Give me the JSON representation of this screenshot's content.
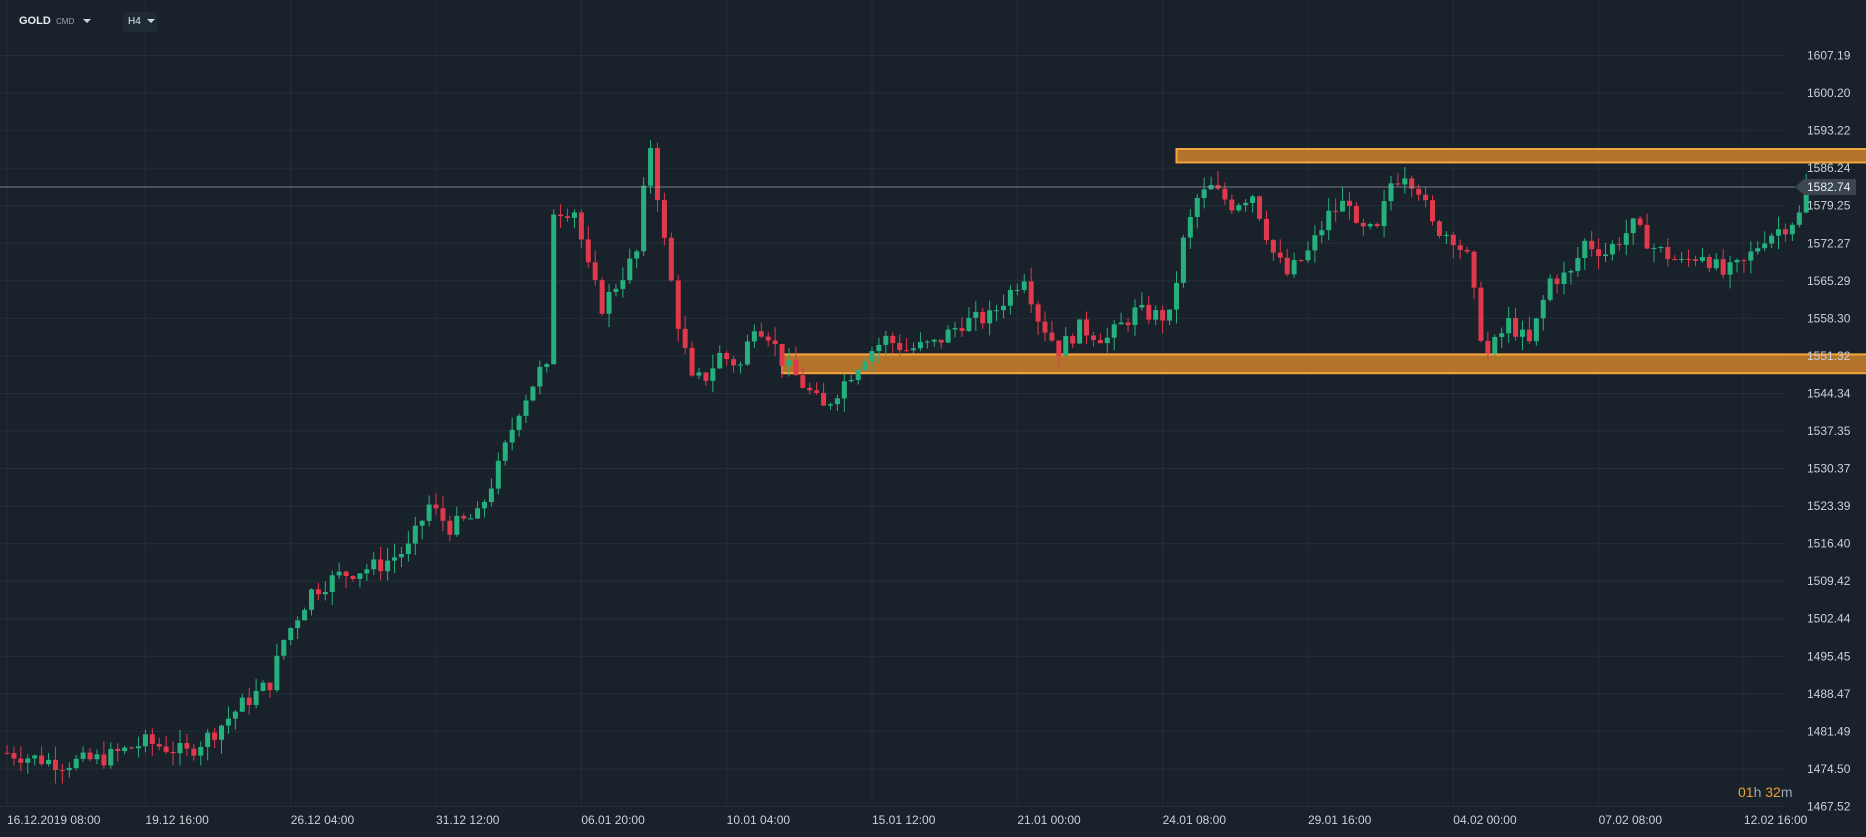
{
  "toolbar": {
    "symbol": "GOLD",
    "instrument_type": "CMD",
    "timeframe": "H4"
  },
  "countdown": {
    "hours": "01",
    "hours_unit": "h",
    "minutes": "32",
    "minutes_unit": "m"
  },
  "colors": {
    "background": "#19222a",
    "grid": "#232e38",
    "bullish": "#26b07e",
    "bearish": "#e0394b",
    "zone_fill": "#e08a2a",
    "zone_border": "#f5a640",
    "price_line": "#9aa5b1",
    "axis_text": "#c9d1d9"
  },
  "chart_data": {
    "type": "candlestick",
    "price_axis": {
      "labels": [
        "1607.19",
        "1600.20",
        "1593.22",
        "1586.24",
        "1579.25",
        "1572.27",
        "1565.29",
        "1558.30",
        "1551.32",
        "1544.34",
        "1537.35",
        "1530.37",
        "1523.39",
        "1516.40",
        "1509.42",
        "1502.44",
        "1495.45",
        "1488.47",
        "1481.49",
        "1474.50",
        "1467.52"
      ],
      "ylim": [
        1465.4,
        1616.6
      ]
    },
    "time_axis": {
      "labels": [
        "16.12.2019  08:00",
        "19.12  16:00",
        "26.12  04:00",
        "31.12  12:00",
        "06.01  20:00",
        "10.01  04:00",
        "15.01  12:00",
        "21.01  00:00",
        "24.01  08:00",
        "29.01  16:00",
        "04.02  00:00",
        "07.02  08:00",
        "12.02  16:00"
      ],
      "label_bar_index": [
        0,
        20,
        41,
        62,
        83,
        104,
        125,
        146,
        167,
        188,
        209,
        230,
        251
      ]
    },
    "current_price": {
      "label": "1582.74",
      "value": 1582.74
    },
    "zones": [
      {
        "name": "resistance",
        "from_bar": 169,
        "to_bar": 270,
        "low": 1587.3,
        "high": 1589.8
      },
      {
        "name": "support",
        "from_bar": 112,
        "to_bar": 272,
        "low": 1548.1,
        "high": 1551.6
      }
    ],
    "waypoints": [
      [
        0,
        1477.5
      ],
      [
        8,
        1475.5
      ],
      [
        14,
        1476.5
      ],
      [
        20,
        1479.5
      ],
      [
        26,
        1477.5
      ],
      [
        30,
        1481.5
      ],
      [
        34,
        1486.5
      ],
      [
        38,
        1490.5
      ],
      [
        40,
        1498.5
      ],
      [
        44,
        1507.5
      ],
      [
        48,
        1510.5
      ],
      [
        54,
        1512.5
      ],
      [
        58,
        1515.5
      ],
      [
        61,
        1523.5
      ],
      [
        64,
        1519.5
      ],
      [
        68,
        1521.5
      ],
      [
        71,
        1530.5
      ],
      [
        74,
        1541.5
      ],
      [
        77,
        1548.5
      ],
      [
        78,
        1548.5
      ],
      [
        79,
        1578.5
      ],
      [
        82,
        1578.5
      ],
      [
        84,
        1567.5
      ],
      [
        86,
        1560.5
      ],
      [
        88,
        1564.5
      ],
      [
        91,
        1570.5
      ],
      [
        92,
        1581.5
      ],
      [
        93,
        1590.5
      ],
      [
        95,
        1572.5
      ],
      [
        97,
        1557.5
      ],
      [
        99,
        1546.5
      ],
      [
        101,
        1547.5
      ],
      [
        103,
        1551.5
      ],
      [
        106,
        1549.5
      ],
      [
        108,
        1557.5
      ],
      [
        110,
        1555.5
      ],
      [
        112,
        1550.5
      ],
      [
        116,
        1544.5
      ],
      [
        118,
        1541.5
      ],
      [
        121,
        1546.5
      ],
      [
        124,
        1551.5
      ],
      [
        127,
        1554.5
      ],
      [
        130,
        1552.5
      ],
      [
        134,
        1553.5
      ],
      [
        138,
        1557.5
      ],
      [
        142,
        1558.5
      ],
      [
        147,
        1566.5
      ],
      [
        149,
        1558.5
      ],
      [
        152,
        1552.5
      ],
      [
        155,
        1556.5
      ],
      [
        159,
        1554.5
      ],
      [
        163,
        1559.5
      ],
      [
        168,
        1558.5
      ],
      [
        170,
        1572.5
      ],
      [
        172,
        1580.5
      ],
      [
        174,
        1582.5
      ],
      [
        177,
        1579.5
      ],
      [
        180,
        1581.5
      ],
      [
        183,
        1570.5
      ],
      [
        185,
        1566.5
      ],
      [
        188,
        1570.5
      ],
      [
        191,
        1577.5
      ],
      [
        194,
        1580.5
      ],
      [
        195,
        1574.5
      ],
      [
        198,
        1574.5
      ],
      [
        200,
        1583.5
      ],
      [
        202,
        1585.5
      ],
      [
        204,
        1582.5
      ],
      [
        206,
        1575.5
      ],
      [
        209,
        1573.5
      ],
      [
        211,
        1569.5
      ],
      [
        213,
        1555.5
      ],
      [
        214,
        1551.5
      ],
      [
        217,
        1557.5
      ],
      [
        220,
        1553.5
      ],
      [
        223,
        1565.5
      ],
      [
        226,
        1566.5
      ],
      [
        228,
        1572.5
      ],
      [
        231,
        1570.5
      ],
      [
        235,
        1575.5
      ],
      [
        238,
        1571.5
      ],
      [
        242,
        1568.5
      ],
      [
        245,
        1570.5
      ],
      [
        248,
        1566.5
      ],
      [
        251,
        1568.5
      ],
      [
        254,
        1573.5
      ],
      [
        257,
        1575.5
      ],
      [
        259,
        1577.5
      ],
      [
        260,
        1582.7
      ]
    ]
  }
}
